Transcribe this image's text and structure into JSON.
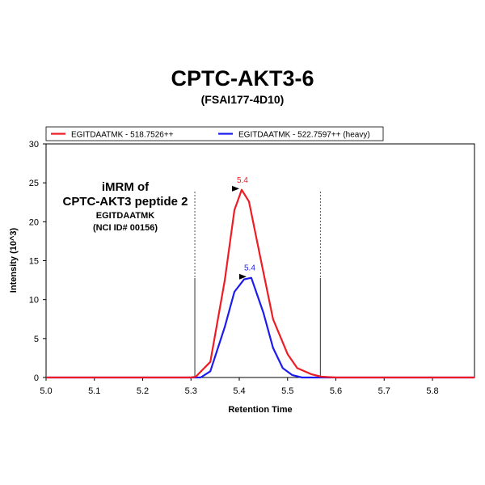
{
  "chart_data": {
    "type": "line",
    "title": "CPTC-AKT3-6",
    "subtitle": "(FSAI177-4D10)",
    "xlabel": "Retention Time",
    "ylabel": "Intensity (10^3)",
    "xlim": [
      5.0,
      5.887
    ],
    "ylim": [
      0,
      30
    ],
    "x_ticks": [
      "5.0",
      "5.1",
      "5.2",
      "5.3",
      "5.4",
      "5.5",
      "5.6",
      "5.7",
      "5.8"
    ],
    "y_ticks": [
      "0",
      "5",
      "10",
      "15",
      "20",
      "25",
      "30"
    ],
    "legend_position": "top",
    "series": [
      {
        "name": "EGITDAATMK - 518.7526++",
        "color": "#ee1c24",
        "x": [
          5.0,
          5.3,
          5.31,
          5.34,
          5.37,
          5.39,
          5.405,
          5.42,
          5.445,
          5.47,
          5.5,
          5.52,
          5.55,
          5.57,
          5.6,
          5.887
        ],
        "y": [
          0,
          0,
          0.1,
          2.0,
          12.5,
          21.5,
          24.1,
          22.6,
          15.0,
          7.5,
          3.0,
          1.2,
          0.4,
          0.1,
          0,
          0
        ],
        "peak_label": "5.4",
        "peak_x": 5.405,
        "peak_y": 24.1
      },
      {
        "name": "EGITDAATMK - 522.7597++ (heavy)",
        "color": "#1c1cee",
        "x": [
          5.0,
          5.32,
          5.34,
          5.37,
          5.39,
          5.41,
          5.425,
          5.45,
          5.47,
          5.49,
          5.51,
          5.53,
          5.887
        ],
        "y": [
          0,
          0,
          0.8,
          6.5,
          11.0,
          12.6,
          12.8,
          8.3,
          3.8,
          1.2,
          0.3,
          0,
          0
        ],
        "peak_label": "5.4",
        "peak_x": 5.42,
        "peak_y": 12.8
      }
    ],
    "vertical_markers": [
      5.308,
      5.568
    ],
    "annotation": {
      "line1": "iMRM of",
      "line2": "CPTC-AKT3 peptide 2",
      "line3": "EGITDAATMK",
      "line4": "(NCI ID# 00156)"
    }
  }
}
